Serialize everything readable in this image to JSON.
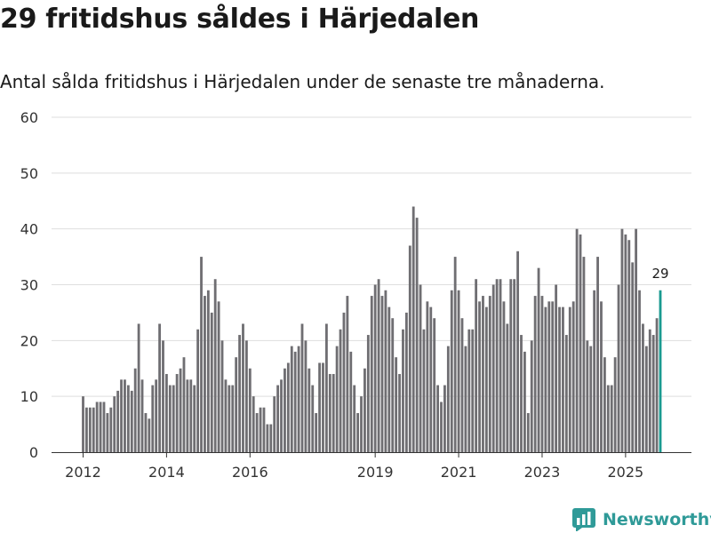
{
  "chart_data": {
    "type": "bar",
    "title": "29 fritidshus såldes i Härjedalen",
    "subtitle": "Antal sålda fritidshus i Härjedalen under de senaste tre månaderna.",
    "xlabel": "",
    "ylabel": "",
    "ylim": [
      0,
      60
    ],
    "y_ticks": [
      0,
      10,
      20,
      30,
      40,
      50,
      60
    ],
    "x_ticks": [
      {
        "label": "2012",
        "index": 0
      },
      {
        "label": "2014",
        "index": 24
      },
      {
        "label": "2016",
        "index": 48
      },
      {
        "label": "2019",
        "index": 84
      },
      {
        "label": "2021",
        "index": 108
      },
      {
        "label": "2023",
        "index": 132
      },
      {
        "label": "2025",
        "index": 156
      }
    ],
    "grid": true,
    "highlight_color": "#1a9a90",
    "bar_color": "#6f6e72",
    "last_value_label": "29",
    "values": [
      10,
      8,
      8,
      8,
      9,
      9,
      9,
      7,
      8,
      10,
      11,
      13,
      13,
      12,
      11,
      15,
      23,
      13,
      7,
      6,
      12,
      13,
      23,
      20,
      14,
      12,
      12,
      14,
      15,
      17,
      13,
      13,
      12,
      22,
      35,
      28,
      29,
      25,
      31,
      27,
      20,
      13,
      12,
      12,
      17,
      21,
      23,
      20,
      15,
      10,
      7,
      8,
      8,
      5,
      5,
      10,
      12,
      13,
      15,
      16,
      19,
      18,
      19,
      23,
      20,
      15,
      12,
      7,
      16,
      16,
      23,
      14,
      14,
      19,
      22,
      25,
      28,
      18,
      12,
      7,
      10,
      15,
      21,
      28,
      30,
      31,
      28,
      29,
      26,
      24,
      17,
      14,
      22,
      25,
      37,
      44,
      42,
      30,
      22,
      27,
      26,
      24,
      12,
      9,
      12,
      19,
      29,
      35,
      29,
      24,
      19,
      22,
      22,
      31,
      27,
      28,
      26,
      28,
      30,
      31,
      31,
      27,
      23,
      31,
      31,
      36,
      21,
      18,
      7,
      20,
      28,
      33,
      28,
      26,
      27,
      27,
      30,
      26,
      26,
      21,
      26,
      27,
      40,
      39,
      35,
      20,
      19,
      29,
      35,
      27,
      17,
      12,
      12,
      17,
      30,
      40,
      39,
      38,
      34,
      40,
      29,
      23,
      19,
      22,
      21,
      24,
      29
    ]
  },
  "brand": {
    "name": "Newsworthy"
  }
}
